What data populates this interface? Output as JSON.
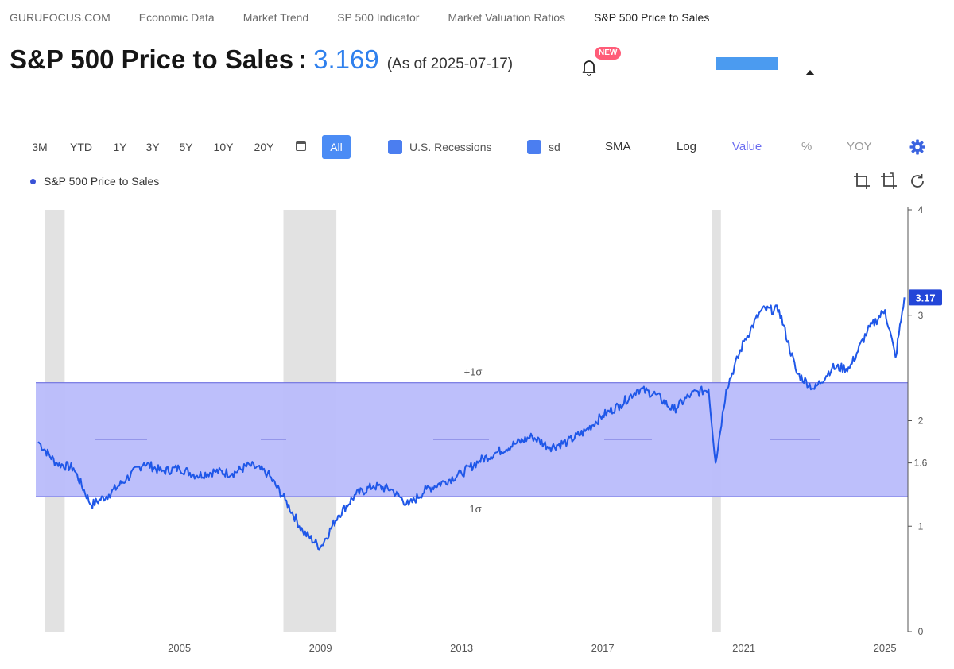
{
  "breadcrumb": [
    "GURUFOCUS.COM",
    "Economic Data",
    "Market Trend",
    "SP 500 Indicator",
    "Market Valuation Ratios",
    "S&P 500 Price to Sales"
  ],
  "header": {
    "title": "S&P 500 Price to Sales",
    "separator": ":",
    "value": "3.169",
    "as_of": "(As of 2025-07-17)",
    "badge": "NEW"
  },
  "toolbar": {
    "ranges": [
      "3M",
      "YTD",
      "1Y",
      "3Y",
      "5Y",
      "10Y",
      "20Y",
      "All"
    ],
    "active_range": "All",
    "recessions_label": "U.S. Recessions",
    "sd_label": "sd",
    "sma_label": "SMA",
    "log_label": "Log",
    "value_label": "Value",
    "percent_label": "%",
    "yoy_label": "YOY"
  },
  "icons": [
    "bell-icon",
    "calendar-icon",
    "gear-icon",
    "crop-icon",
    "crop-alt-icon",
    "reset-icon"
  ],
  "colors": {
    "accent": "#2f80ed",
    "line": "#1f57e8",
    "band": "#b9bcfb",
    "recession": "#e2e2e2",
    "badge": "#ff5c78"
  },
  "chart_data": {
    "type": "line",
    "series": [
      {
        "name": "S&P 500 Price to Sales",
        "x": [
          2001.0,
          2001.5,
          2002.0,
          2002.5,
          2003.0,
          2003.5,
          2004.0,
          2004.5,
          2005.0,
          2005.5,
          2006.0,
          2006.5,
          2007.0,
          2007.5,
          2008.0,
          2008.5,
          2009.0,
          2009.5,
          2010.0,
          2010.5,
          2011.0,
          2011.5,
          2012.0,
          2012.5,
          2013.0,
          2013.5,
          2014.0,
          2014.5,
          2015.0,
          2015.5,
          2016.0,
          2016.5,
          2017.0,
          2017.5,
          2018.0,
          2018.5,
          2019.0,
          2019.5,
          2020.0,
          2020.2,
          2020.5,
          2021.0,
          2021.5,
          2022.0,
          2022.5,
          2023.0,
          2023.5,
          2024.0,
          2024.5,
          2025.0,
          2025.3,
          2025.55
        ],
        "values": [
          1.8,
          1.6,
          1.55,
          1.2,
          1.3,
          1.45,
          1.6,
          1.52,
          1.55,
          1.48,
          1.52,
          1.5,
          1.58,
          1.5,
          1.25,
          0.95,
          0.8,
          1.1,
          1.3,
          1.38,
          1.35,
          1.2,
          1.35,
          1.42,
          1.5,
          1.62,
          1.7,
          1.78,
          1.85,
          1.75,
          1.8,
          1.9,
          2.05,
          2.15,
          2.3,
          2.25,
          2.1,
          2.25,
          2.3,
          1.6,
          2.3,
          2.75,
          3.05,
          3.05,
          2.45,
          2.3,
          2.5,
          2.5,
          2.85,
          3.05,
          2.6,
          3.169
        ]
      }
    ],
    "x_ticks": [
      "2005",
      "2009",
      "2013",
      "2017",
      "2021",
      "2025"
    ],
    "y_ticks": [
      "0",
      "1",
      "1.6",
      "2",
      "3",
      "4"
    ],
    "ylim": [
      0,
      4
    ],
    "band": {
      "upper": 2.36,
      "lower": 1.28,
      "upper_label": "+1σ",
      "lower_label": "1σ",
      "mean": 1.82
    },
    "recessions": [
      [
        2001.2,
        2001.75
      ],
      [
        2007.95,
        2009.45
      ],
      [
        2020.1,
        2020.35
      ]
    ],
    "last_value_label": "3.17",
    "xlabel": "",
    "ylabel": "",
    "grid": false
  }
}
